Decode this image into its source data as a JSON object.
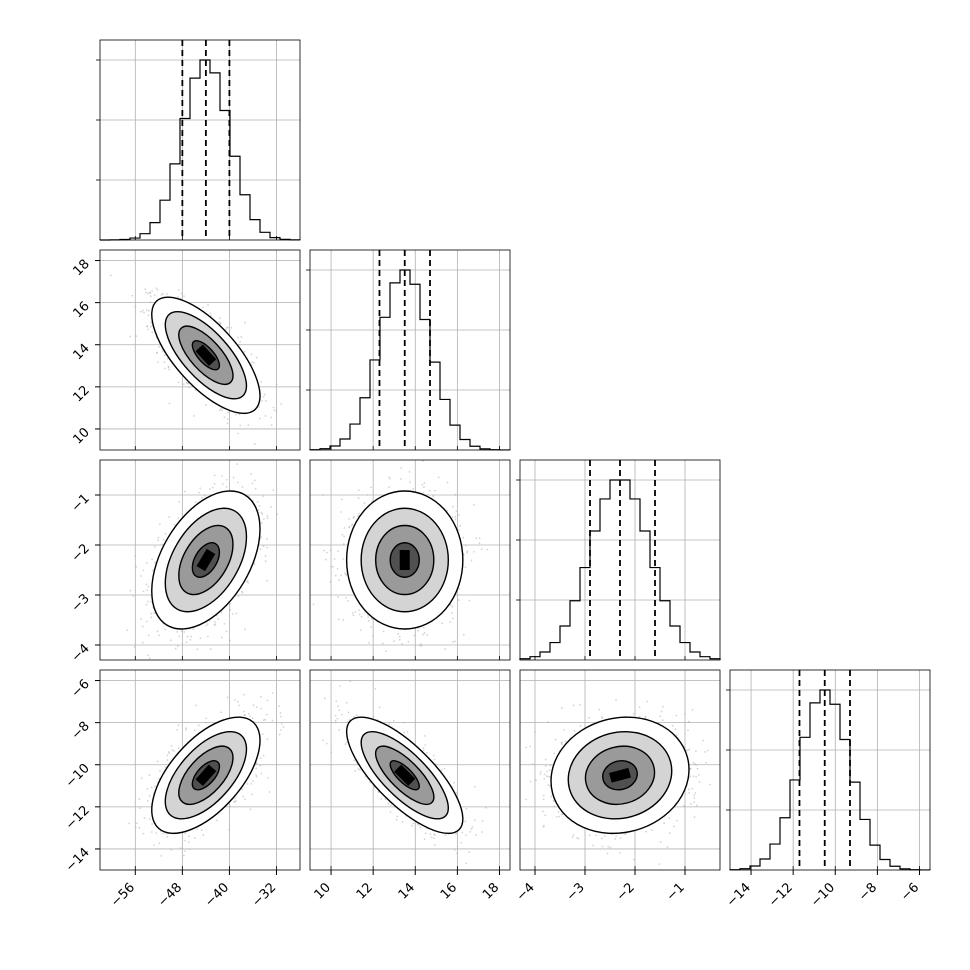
{
  "chart_data": {
    "type": "corner",
    "n_params": 4,
    "params": [
      {
        "index": 0,
        "range": [
          -62,
          -28
        ],
        "ticks": [
          -56,
          -48,
          -40,
          -32
        ],
        "tick_labels": [
          "−56",
          "−48",
          "−40",
          "−32"
        ],
        "quantiles": [
          -48,
          -44,
          -40
        ],
        "mean": -44,
        "sd": 4
      },
      {
        "index": 1,
        "range": [
          9,
          18.5
        ],
        "ticks": [
          10,
          12,
          14,
          16,
          18
        ],
        "tick_labels": [
          "10",
          "12",
          "14",
          "16",
          "18"
        ],
        "quantiles": [
          12.3,
          13.5,
          14.7
        ],
        "mean": 13.5,
        "sd": 1.2
      },
      {
        "index": 2,
        "range": [
          -4.3,
          -0.3
        ],
        "ticks": [
          -4,
          -3,
          -2,
          -1
        ],
        "tick_labels": [
          "−4",
          "−3",
          "−2",
          "−1"
        ],
        "quantiles": [
          -2.9,
          -2.3,
          -1.6
        ],
        "mean": -2.3,
        "sd": 0.6
      },
      {
        "index": 3,
        "range": [
          -15,
          -5.5
        ],
        "ticks": [
          -14,
          -12,
          -10,
          -8,
          -6
        ],
        "tick_labels": [
          "−14",
          "−12",
          "−10",
          "−8",
          "−6"
        ],
        "quantiles": [
          -11.7,
          -10.5,
          -9.3
        ],
        "mean": -10.5,
        "sd": 1.2
      }
    ],
    "correlations": [
      [
        1,
        -0.7,
        0.45,
        0.6
      ],
      [
        -0.7,
        1,
        0,
        -0.75
      ],
      [
        0.45,
        0,
        1,
        0.1
      ],
      [
        0.6,
        -0.75,
        0.1,
        1
      ]
    ],
    "quantile_line_style": "dashed",
    "contour_levels_sigma": [
      0.5,
      1.0,
      1.5,
      2.0
    ],
    "grid": true
  },
  "colors": {
    "scatter": "#b0b0b0",
    "line": "#000000",
    "grid": "#b0b0b0"
  }
}
